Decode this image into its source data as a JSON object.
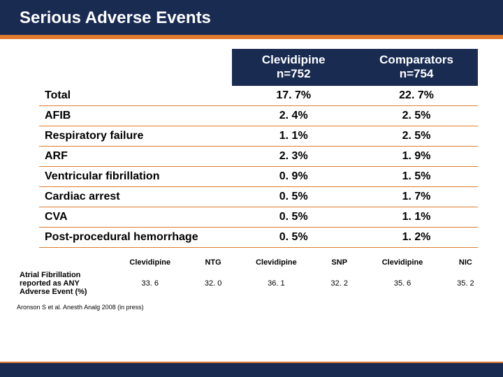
{
  "colors": {
    "navy": "#1a2b52",
    "orange": "#e07b2e",
    "white": "#ffffff",
    "black": "#000000"
  },
  "title": "Serious Adverse Events",
  "main_table": {
    "columns": [
      {
        "line1": "Clevidipine",
        "line2": "n=752"
      },
      {
        "line1": "Comparators",
        "line2": "n=754"
      }
    ],
    "rows": [
      {
        "label": "Total",
        "v1": "17. 7%",
        "v2": "22. 7%"
      },
      {
        "label": "AFIB",
        "v1": "2. 4%",
        "v2": "2. 5%"
      },
      {
        "label": "Respiratory failure",
        "v1": "1. 1%",
        "v2": "2. 5%"
      },
      {
        "label": "ARF",
        "v1": "2. 3%",
        "v2": "1. 9%"
      },
      {
        "label": "Ventricular fibrillation",
        "v1": "0. 9%",
        "v2": "1. 5%"
      },
      {
        "label": "Cardiac arrest",
        "v1": "0. 5%",
        "v2": "1. 7%"
      },
      {
        "label": "CVA",
        "v1": "0. 5%",
        "v2": "1. 1%"
      },
      {
        "label": "Post-procedural hemorrhage",
        "v1": "0. 5%",
        "v2": "1. 2%"
      }
    ]
  },
  "sub_table": {
    "headers": [
      "Clevidipine",
      "NTG",
      "Clevidipine",
      "SNP",
      "Clevidipine",
      "NIC"
    ],
    "row_label_l1": "Atrial Fibrillation",
    "row_label_l2": "reported as ANY",
    "row_label_l3": "Adverse Event (%)",
    "row_values": [
      "33. 6",
      "32. 0",
      "36. 1",
      "32. 2",
      "35. 6",
      "35. 2"
    ]
  },
  "citation": "Aronson S et al. Anesth Analg 2008 (in press)"
}
